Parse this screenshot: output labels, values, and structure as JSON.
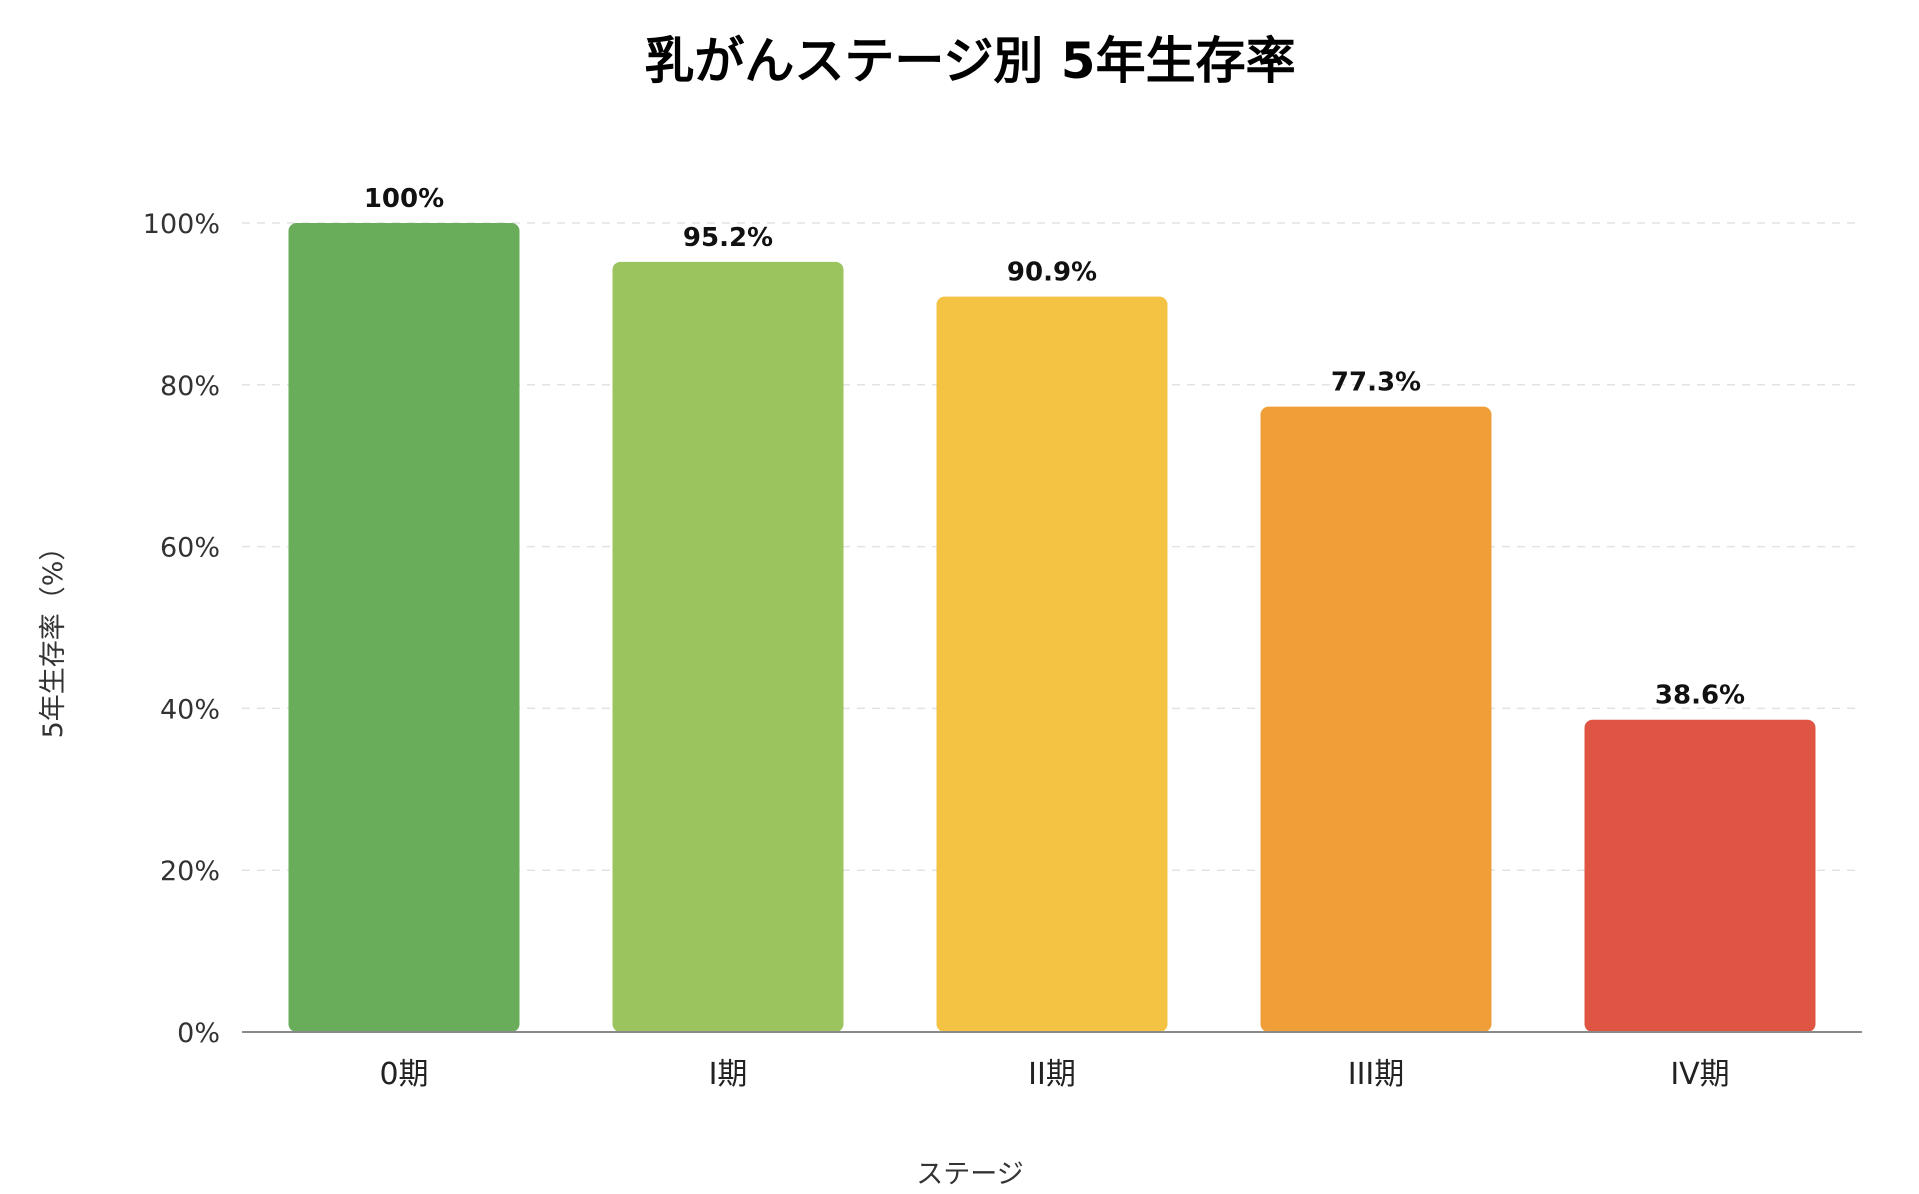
{
  "chart_data": {
    "type": "bar",
    "title": "乳がんステージ別 5年生存率",
    "xlabel": "ステージ",
    "ylabel": "5年生存率（%）",
    "categories": [
      "0期",
      "I期",
      "II期",
      "III期",
      "IV期"
    ],
    "values": [
      100,
      95.2,
      90.9,
      77.3,
      38.6
    ],
    "value_labels": [
      "100%",
      "95.2%",
      "90.9%",
      "77.3%",
      "38.6%"
    ],
    "colors": [
      "#69ad5b",
      "#9bc35e",
      "#f5c344",
      "#f09e38",
      "#e05443"
    ],
    "ylim": [
      0,
      100
    ],
    "yticks": [
      0,
      20,
      40,
      60,
      80,
      100
    ],
    "ytick_labels": [
      "0%",
      "20%",
      "40%",
      "60%",
      "80%",
      "100%"
    ],
    "grid": true,
    "legend": "none"
  }
}
